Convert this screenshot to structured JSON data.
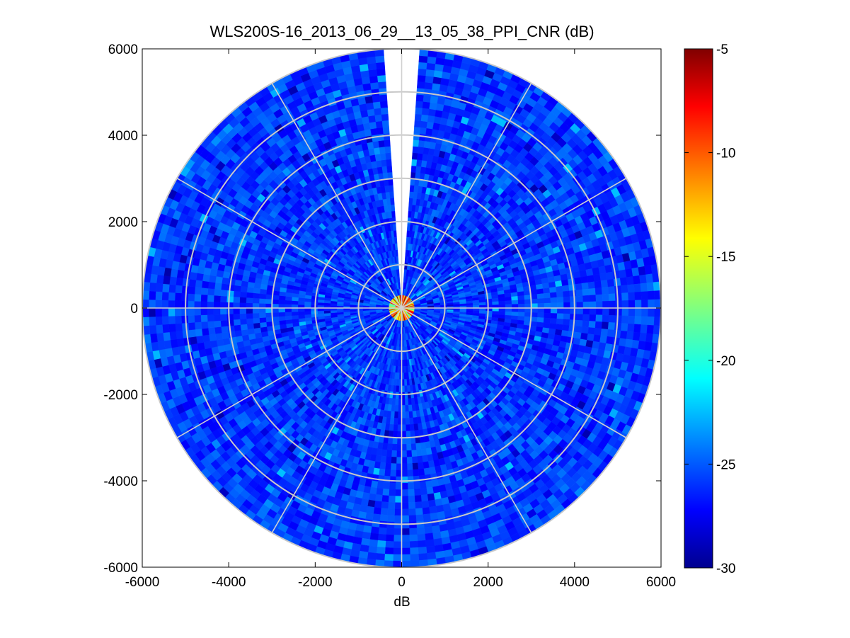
{
  "chart_data": {
    "type": "heatmap",
    "subtype": "polar-ppi-scan",
    "title": "WLS200S-16_2013_06_29__13_05_38_PPI_CNR (dB)",
    "xlabel": "dB",
    "ylabel": "",
    "xlim": [
      -6000,
      6000
    ],
    "ylim": [
      -6000,
      6000
    ],
    "xticks": [
      -6000,
      -4000,
      -2000,
      0,
      2000,
      4000,
      6000
    ],
    "yticks": [
      -6000,
      -4000,
      -2000,
      0,
      2000,
      4000,
      6000
    ],
    "xtick_labels": [
      "-6000",
      "-4000",
      "-2000",
      "0",
      "2000",
      "4000",
      "6000"
    ],
    "ytick_labels": [
      "6000",
      "4000",
      "2000",
      "0",
      "-2000",
      "-4000",
      "-6000"
    ],
    "max_range": 6000,
    "range_rings": [
      1000,
      2000,
      3000,
      4000,
      5000,
      6000
    ],
    "spoke_angles_deg": [
      0,
      30,
      60,
      90,
      120,
      150,
      180,
      210,
      240,
      270,
      300,
      330
    ],
    "missing_sector_deg": [
      -4,
      4
    ],
    "background_cnr_db": [
      -27,
      -24
    ],
    "near_field_radius": 300,
    "near_field_cnr_db": [
      -20,
      -5
    ],
    "grid": true,
    "colorbar": {
      "colormap": "jet",
      "range": [
        -30,
        -5
      ],
      "ticks": [
        -5,
        -10,
        -15,
        -20,
        -25,
        -30
      ],
      "tick_labels": [
        "-5",
        "-10",
        "-15",
        "-20",
        "-25",
        "-30"
      ]
    }
  }
}
